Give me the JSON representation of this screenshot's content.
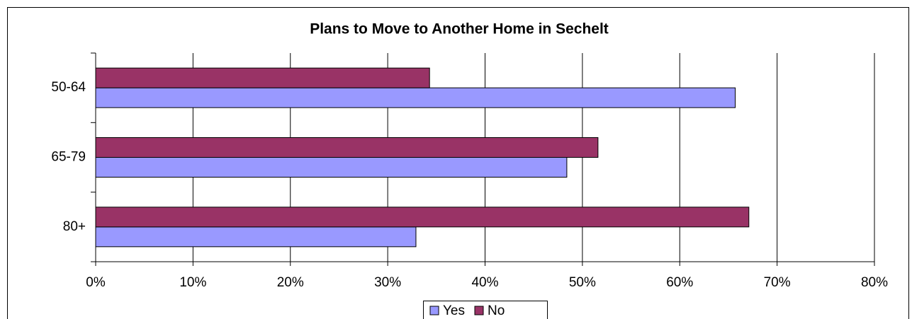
{
  "chart_data": {
    "type": "hbar",
    "title": "Plans to Move to Another Home in Sechelt",
    "categories": [
      "50-64",
      "65-79",
      "80+"
    ],
    "series": [
      {
        "name": "Yes",
        "color": "#9999ff",
        "values": [
          65.7,
          48.4,
          32.9
        ]
      },
      {
        "name": "No",
        "color": "#993366",
        "values": [
          34.3,
          51.6,
          67.1
        ]
      }
    ],
    "xlim": [
      0,
      80
    ],
    "xticks": [
      {
        "value": 0,
        "label": "0%"
      },
      {
        "value": 10,
        "label": "10%"
      },
      {
        "value": 20,
        "label": "20%"
      },
      {
        "value": 30,
        "label": "30%"
      },
      {
        "value": 40,
        "label": "40%"
      },
      {
        "value": 50,
        "label": "50%"
      },
      {
        "value": 60,
        "label": "60%"
      },
      {
        "value": 70,
        "label": "70%"
      },
      {
        "value": 80,
        "label": "80%"
      }
    ],
    "grid": true,
    "legend": "bottom"
  }
}
